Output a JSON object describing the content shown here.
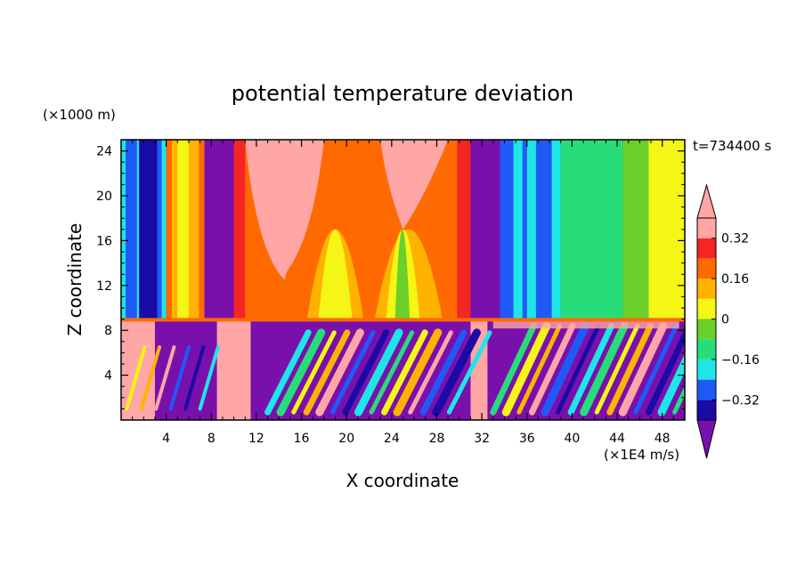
{
  "chart_data": {
    "type": "heatmap",
    "title": "potential temperature deviation",
    "xlabel": "X coordinate",
    "ylabel": "Z coordinate",
    "x_unit": "(×1E4 m/s)",
    "y_unit": "(×1000 m)",
    "time_label": "t=734400 s",
    "xlim": [
      0,
      50
    ],
    "ylim": [
      0,
      25
    ],
    "x_ticks": [
      4,
      8,
      12,
      16,
      20,
      24,
      28,
      32,
      36,
      40,
      44,
      48
    ],
    "y_ticks": [
      4,
      8,
      12,
      16,
      20,
      24
    ],
    "colorbar": {
      "levels": [
        -0.4,
        -0.32,
        -0.24,
        -0.16,
        -0.08,
        0,
        0.08,
        0.16,
        0.24,
        0.32,
        0.4
      ],
      "tick_labels": [
        "0.32",
        "0.16",
        "0",
        "−0.16",
        "−0.32"
      ],
      "tick_values": [
        0.32,
        0.16,
        0,
        -0.16,
        -0.32
      ],
      "colors": [
        "#7a10ac",
        "#1a0aa6",
        "#1f5af7",
        "#1ee6e6",
        "#26dd7a",
        "#6ad02a",
        "#f5f516",
        "#ffb300",
        "#ff6a00",
        "#f52525",
        "#ffa6a6"
      ]
    }
  }
}
